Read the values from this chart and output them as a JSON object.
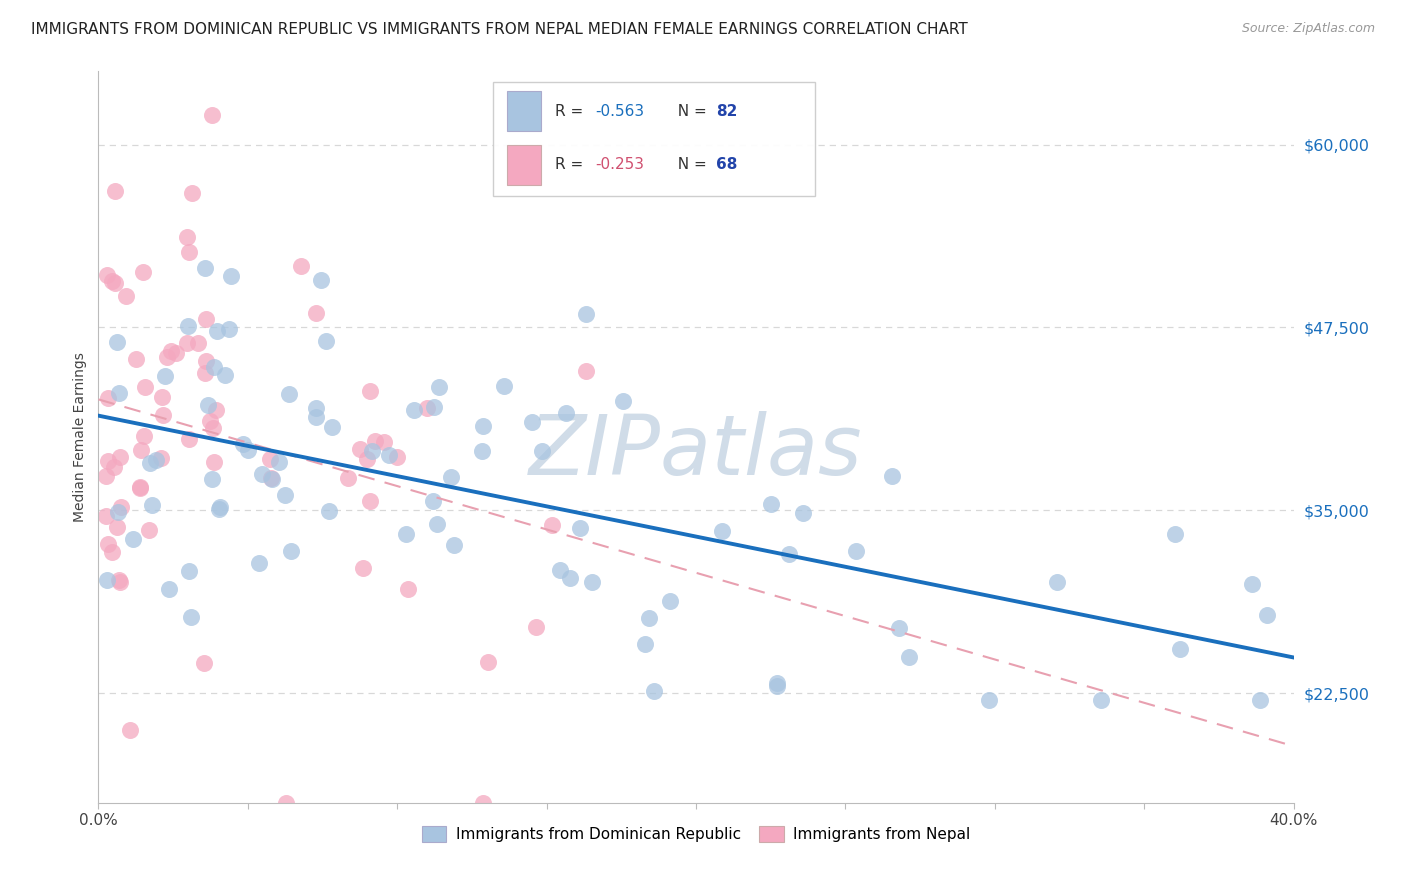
{
  "title": "IMMIGRANTS FROM DOMINICAN REPUBLIC VS IMMIGRANTS FROM NEPAL MEDIAN FEMALE EARNINGS CORRELATION CHART",
  "source": "Source: ZipAtlas.com",
  "ylabel": "Median Female Earnings",
  "legend_labels": [
    "Immigrants from Dominican Republic",
    "Immigrants from Nepal"
  ],
  "legend_r_blue": "R = -0.563",
  "legend_n_blue": "N = 82",
  "legend_r_pink": "R = -0.253",
  "legend_n_pink": "N = 68",
  "xmin": 0.0,
  "xmax": 0.4,
  "ymin": 15000,
  "ymax": 65000,
  "yticks": [
    22500,
    35000,
    47500,
    60000
  ],
  "ytick_labels": [
    "$22,500",
    "$35,000",
    "$47,500",
    "$60,000"
  ],
  "xticks": [
    0.0,
    0.05,
    0.1,
    0.15,
    0.2,
    0.25,
    0.3,
    0.35,
    0.4
  ],
  "xtick_labels": [
    "0.0%",
    "",
    "",
    "",
    "",
    "",
    "",
    "",
    "40.0%"
  ],
  "blue_scatter_color": "#a8c4e0",
  "pink_scatter_color": "#f4a8c0",
  "blue_line_color": "#1a6fbd",
  "pink_line_color": "#e8a0b0",
  "watermark": "ZIPatlas",
  "watermark_color": "#d0dce8",
  "background_color": "#ffffff",
  "grid_color": "#d8d8d8",
  "title_fontsize": 11,
  "ylabel_fontsize": 10,
  "ytick_color": "#1a6fbd",
  "xtick_color": "#444444",
  "legend_text_color_blue": "#1a6fbd",
  "legend_text_color_pink": "#d05070",
  "legend_n_color": "#2244aa"
}
